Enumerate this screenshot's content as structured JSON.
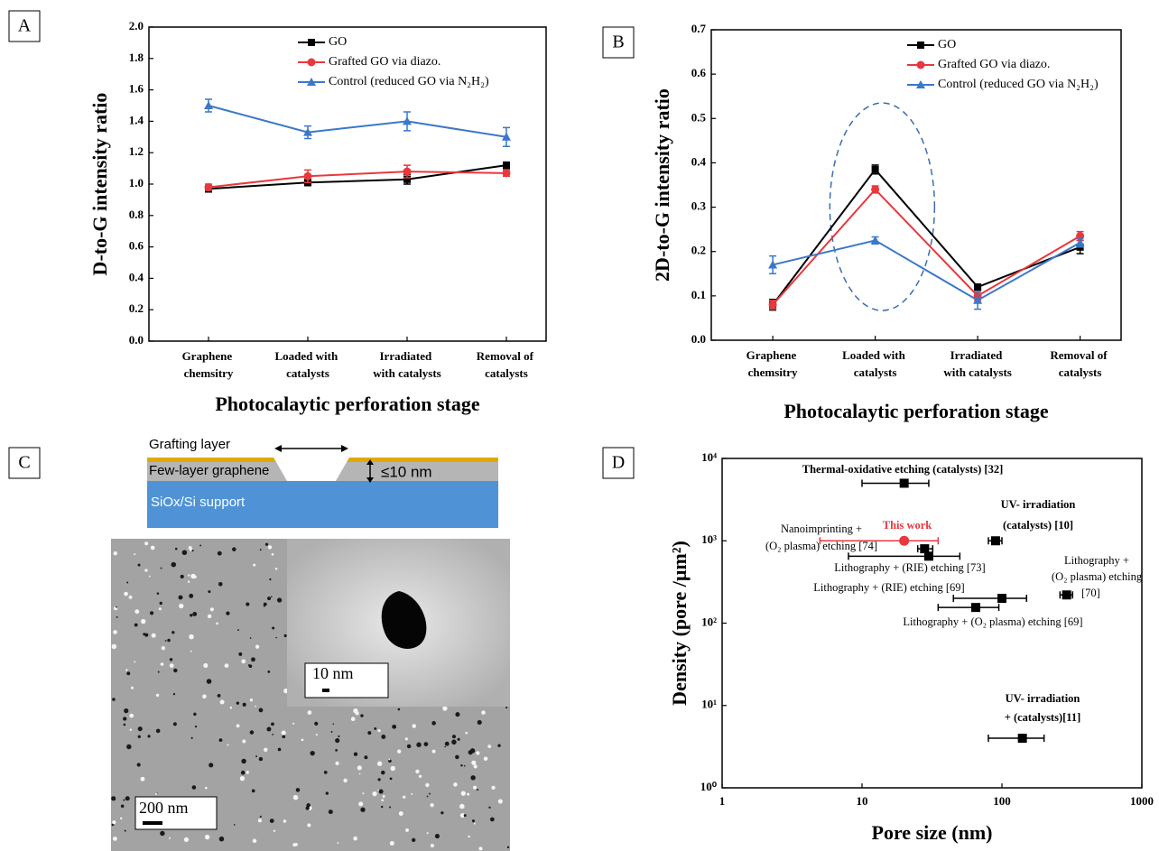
{
  "chart_data": [
    {
      "type": "line",
      "panel": "A",
      "ylabel": "D-to-G intensity ratio",
      "xlabel": "Photocalaytic perforation stage",
      "categories": [
        "Graphene chemsitry",
        "Loaded with catalysts",
        "Irradiated with catalysts",
        "Removal of catalysts"
      ],
      "ylim": [
        0,
        2
      ],
      "yticks": [
        {
          "value": 0,
          "label": "0.0"
        },
        0.2,
        0.4,
        0.6,
        0.8,
        {
          "value": 1,
          "label": "1.0"
        },
        1.2,
        1.4,
        1.6,
        1.8,
        {
          "value": 2,
          "label": "2.0"
        }
      ],
      "series": [
        {
          "name": "GO",
          "color": "#000000",
          "marker": "square",
          "values": [
            0.97,
            1.01,
            1.03,
            1.12
          ],
          "errors": [
            0.02,
            0.02,
            0.03,
            0.02
          ]
        },
        {
          "name": "Grafted GO via diazo.",
          "color": "#e8383d",
          "marker": "circle",
          "values": [
            0.98,
            1.05,
            1.08,
            1.07
          ],
          "errors": [
            0.02,
            0.04,
            0.04,
            0.02
          ]
        },
        {
          "name": "Control (reduced GO via N₂H₂)",
          "color": "#3a78c9",
          "marker": "triangle",
          "values": [
            1.5,
            1.33,
            1.4,
            1.3
          ],
          "errors": [
            0.04,
            0.04,
            0.06,
            0.06
          ]
        }
      ]
    },
    {
      "type": "line",
      "panel": "B",
      "ylabel": "2D-to-G intensity ratio",
      "xlabel": "Photocalaytic perforation stage",
      "categories": [
        "Graphene chemsitry",
        "Loaded with catalysts",
        "Irradiated with catalysts",
        "Removal of catalysts"
      ],
      "ylim": [
        0,
        0.7
      ],
      "yticks": [
        {
          "value": 0,
          "label": "0.0"
        },
        0.1,
        0.2,
        0.3,
        0.4,
        0.5,
        0.6,
        0.7
      ],
      "series": [
        {
          "name": "GO",
          "color": "#000000",
          "marker": "square",
          "values": [
            0.08,
            0.385,
            0.12,
            0.21
          ],
          "errors": [
            0.012,
            0.01,
            0.005,
            0.015
          ]
        },
        {
          "name": "Grafted GO via diazo.",
          "color": "#e8383d",
          "marker": "circle",
          "values": [
            0.08,
            0.34,
            0.1,
            0.235
          ],
          "errors": [
            0.01,
            0.008,
            0.01,
            0.01
          ]
        },
        {
          "name": "Control (reduced GO via N₂H₂)",
          "color": "#3a78c9",
          "marker": "triangle",
          "values": [
            0.17,
            0.225,
            0.09,
            0.22
          ],
          "errors": [
            0.02,
            0.008,
            0.02,
            0.01
          ]
        }
      ]
    },
    {
      "type": "scatter",
      "panel": "D",
      "ylabel": "Density (pore /µm²)",
      "xlabel": "Pore size (nm)",
      "log_x": true,
      "log_y": true,
      "xlim": [
        1,
        1000
      ],
      "ylim": [
        1,
        10000
      ],
      "xticks": [
        1,
        10,
        100,
        1000
      ],
      "yticks": [
        {
          "value": 1,
          "label": "10⁰"
        },
        {
          "value": 10,
          "label": "10¹"
        },
        {
          "value": 100,
          "label": "10²"
        },
        {
          "value": 1000,
          "label": "10³"
        },
        {
          "value": 10000,
          "label": "10⁴"
        }
      ],
      "points": [
        {
          "label": [
            "Thermal-oxidative etching (catalysts) [32]"
          ],
          "x": 20,
          "y": 5000,
          "x_low": 10,
          "x_high": 30,
          "color": "#000000"
        },
        {
          "label": [
            "UV- irradiation",
            "(catalysts) [10]"
          ],
          "x": 90,
          "y": 1000,
          "x_low": 80,
          "x_high": 100,
          "color": "#000000"
        },
        {
          "label": [
            "This work"
          ],
          "x": 20,
          "y": 1000,
          "x_low": 5,
          "x_high": 35,
          "color": "#e8383d"
        },
        {
          "label": [
            "Nanoimprinting +",
            "(O₂ plasma) etching [74]"
          ],
          "x": 28,
          "y": 800,
          "x_low": 25,
          "x_high": 32,
          "color": "#000000"
        },
        {
          "label": [
            "Lithography + (RIE) etching [73]"
          ],
          "x": 30,
          "y": 650,
          "x_low": 8,
          "x_high": 50,
          "color": "#000000"
        },
        {
          "label": [
            "Lithography +",
            "(O₂ plasma) etching",
            "[70]"
          ],
          "x": 290,
          "y": 220,
          "x_low": 260,
          "x_high": 320,
          "color": "#000000"
        },
        {
          "label": [
            "Lithography + (RIE) etching [69]"
          ],
          "x": 100,
          "y": 200,
          "x_low": 45,
          "x_high": 150,
          "color": "#000000"
        },
        {
          "label": [
            "Lithography + (O₂ plasma) etching [69]"
          ],
          "x": 65,
          "y": 155,
          "x_low": 35,
          "x_high": 95,
          "color": "#000000"
        },
        {
          "label": [
            "UV- irradiation",
            "+ (catalysts)[11]"
          ],
          "x": 140,
          "y": 4,
          "x_low": 80,
          "x_high": 200,
          "color": "#000000"
        }
      ]
    }
  ],
  "diagram": {
    "panel": "C",
    "grafting_layer": "Grafting layer",
    "graphene": "Few-layer graphene",
    "thickness": "≤10 nm",
    "support": "SiOx/Si support",
    "inset_scale": "10 nm",
    "main_scale": "200 nm"
  }
}
